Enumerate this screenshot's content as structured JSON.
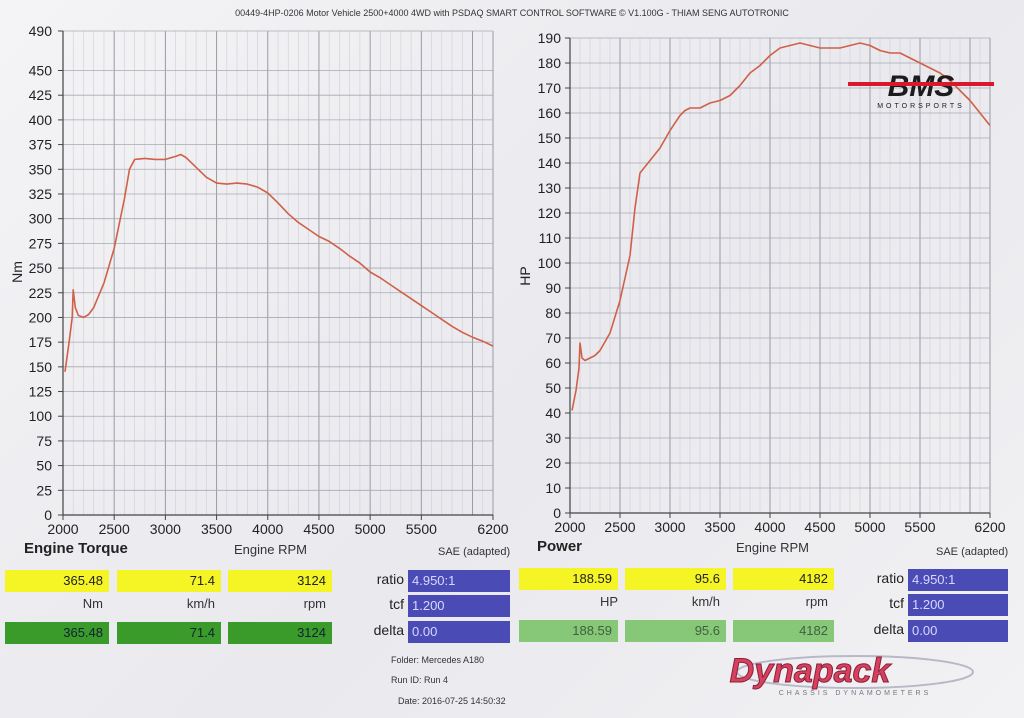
{
  "header": {
    "text": "00449-4HP-0206 Motor Vehicle 2500+4000 4WD with PSDAQ SMART CONTROL SOFTWARE © V1.100G - THIAM SENG AUTOTRONIC"
  },
  "logos": {
    "bms_main": "BMS",
    "bms_sub": "MOTORSPORTS",
    "dyna_main": "Dynapack",
    "dyna_sub": "CHASSIS DYNAMOMETERS"
  },
  "colors": {
    "curve": "#d06048",
    "yellow": "#f5f526",
    "green": "#3a9a2a",
    "blue": "#4b4bb6",
    "bms_red": "#d8182c",
    "dyna_red": "#d84060"
  },
  "chart_data": [
    {
      "type": "line",
      "title": "Engine Torque",
      "xlabel": "Engine RPM",
      "ylabel": "Nm",
      "xlim": [
        2000,
        6200
      ],
      "ylim": [
        0,
        490
      ],
      "xticks": [
        2000,
        2500,
        3000,
        3500,
        4000,
        4500,
        5000,
        5500,
        6200
      ],
      "yticks": [
        0,
        25,
        50,
        75,
        100,
        125,
        150,
        175,
        200,
        225,
        250,
        275,
        300,
        325,
        350,
        375,
        400,
        425,
        450,
        490
      ],
      "grid": true,
      "series": [
        {
          "x": [
            2020,
            2060,
            2090,
            2100,
            2120,
            2150,
            2200,
            2250,
            2300,
            2400,
            2500,
            2600,
            2650,
            2700,
            2800,
            2900,
            3000,
            3100,
            3150,
            3200,
            3300,
            3400,
            3500,
            3600,
            3700,
            3800,
            3900,
            4000,
            4100,
            4200,
            4300,
            4400,
            4500,
            4600,
            4700,
            4800,
            4900,
            5000,
            5100,
            5200,
            5300,
            5400,
            5500,
            5600,
            5700,
            5800,
            5900,
            6000,
            6100,
            6200
          ],
          "y": [
            145,
            175,
            200,
            228,
            210,
            202,
            200,
            203,
            210,
            235,
            270,
            320,
            350,
            360,
            361,
            360,
            360,
            363,
            365,
            362,
            352,
            342,
            336,
            335,
            336,
            335,
            332,
            326,
            316,
            305,
            296,
            289,
            282,
            277,
            270,
            262,
            255,
            246,
            240,
            233,
            226,
            219,
            212,
            205,
            198,
            191,
            185,
            180,
            176,
            171
          ]
        }
      ],
      "readout": {
        "torque": "365.48",
        "torque_unit": "Nm",
        "speed": "71.4",
        "speed_unit": "km/h",
        "rpm": "3124",
        "rpm_unit": "rpm",
        "torque2": "365.48",
        "speed2": "71.4",
        "rpm2": "3124"
      }
    },
    {
      "type": "line",
      "title": "Power",
      "xlabel": "Engine RPM",
      "ylabel": "HP",
      "xlim": [
        2000,
        6200
      ],
      "ylim": [
        0,
        190
      ],
      "xticks": [
        2000,
        2500,
        3000,
        3500,
        4000,
        4500,
        5000,
        5500,
        6200
      ],
      "yticks": [
        0,
        10,
        20,
        30,
        40,
        50,
        60,
        70,
        80,
        90,
        100,
        110,
        120,
        130,
        140,
        150,
        160,
        170,
        180,
        190
      ],
      "grid": true,
      "series": [
        {
          "x": [
            2020,
            2060,
            2090,
            2100,
            2120,
            2150,
            2200,
            2250,
            2300,
            2400,
            2500,
            2600,
            2650,
            2700,
            2800,
            2900,
            3000,
            3100,
            3150,
            3200,
            3300,
            3400,
            3500,
            3600,
            3700,
            3800,
            3900,
            4000,
            4100,
            4200,
            4300,
            4400,
            4500,
            4600,
            4700,
            4800,
            4900,
            5000,
            5100,
            5200,
            5300,
            5400,
            5500,
            5600,
            5700,
            5800,
            5900,
            6000,
            6100,
            6200
          ],
          "y": [
            41,
            49,
            58,
            68,
            62,
            61,
            62,
            63,
            65,
            72,
            85,
            103,
            122,
            136,
            141,
            146,
            153,
            159,
            161,
            162,
            162,
            164,
            165,
            167,
            171,
            176,
            179,
            183,
            186,
            187,
            188,
            187,
            186,
            186,
            186,
            187,
            188,
            187,
            185,
            184,
            184,
            182,
            180,
            178,
            176,
            173,
            169,
            165,
            160,
            155
          ]
        }
      ],
      "readout": {
        "power": "188.59",
        "power_unit": "HP",
        "speed": "95.6",
        "speed_unit": "km/h",
        "rpm": "4182",
        "rpm_unit": "rpm",
        "power2": "188.59",
        "speed2": "95.6",
        "rpm2": "4182"
      }
    }
  ],
  "params": {
    "sae": "SAE (adapted)",
    "ratio_label": "ratio",
    "ratio": "4.950:1",
    "tcf_label": "tcf",
    "tcf": "1.200",
    "delta_label": "delta",
    "delta": "0.00"
  },
  "footer": {
    "folder": "Folder:  Mercedes A180",
    "run": "Run ID:  Run 4",
    "date": "Date:  2016-07-25 14:50:32"
  }
}
